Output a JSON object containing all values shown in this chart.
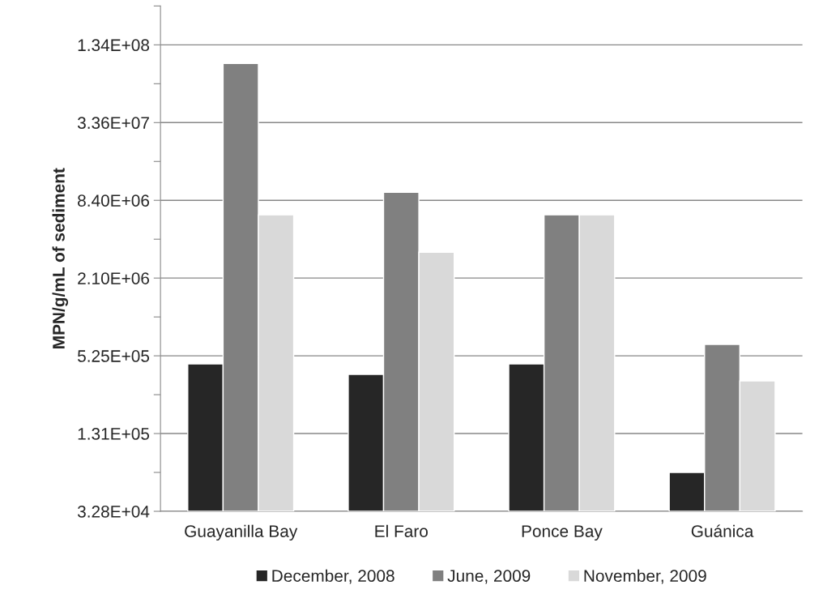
{
  "chart_data": {
    "type": "bar",
    "ylabel": "MPN/g/mL of sediment",
    "categories": [
      "Guayanilla Bay",
      "El Faro",
      "Ponce Bay",
      "Guánica"
    ],
    "series": [
      {
        "name": "December, 2008",
        "color": "#262626",
        "values": [
          454000,
          377000,
          454000,
          65600
        ]
      },
      {
        "name": "June, 2009",
        "color": "#808080",
        "values": [
          96400000,
          9700000,
          6480000,
          643000
        ]
      },
      {
        "name": "November, 2009",
        "color": "#d9d9d9",
        "values": [
          6480000,
          3330000,
          6480000,
          335000
        ]
      }
    ],
    "log": "y",
    "ylim": [
      32800,
      268697600
    ],
    "yticks": [
      {
        "value": 32800,
        "label": "3.28E+04"
      },
      {
        "value": 65600,
        "label": null
      },
      {
        "value": 131200,
        "label": "1.31E+05"
      },
      {
        "value": 262400,
        "label": null
      },
      {
        "value": 524800,
        "label": "5.25E+05"
      },
      {
        "value": 1049600,
        "label": null
      },
      {
        "value": 2099200,
        "label": "2.10E+06"
      },
      {
        "value": 4198400,
        "label": null
      },
      {
        "value": 8396800,
        "label": "8.40E+06"
      },
      {
        "value": 16793600,
        "label": null
      },
      {
        "value": 33587200,
        "label": "3.36E+07"
      },
      {
        "value": 67174400,
        "label": null
      },
      {
        "value": 134348800,
        "label": "1.34E+08"
      },
      {
        "value": 268697600,
        "label": null
      }
    ],
    "grid": "y",
    "legend": "bottom"
  }
}
